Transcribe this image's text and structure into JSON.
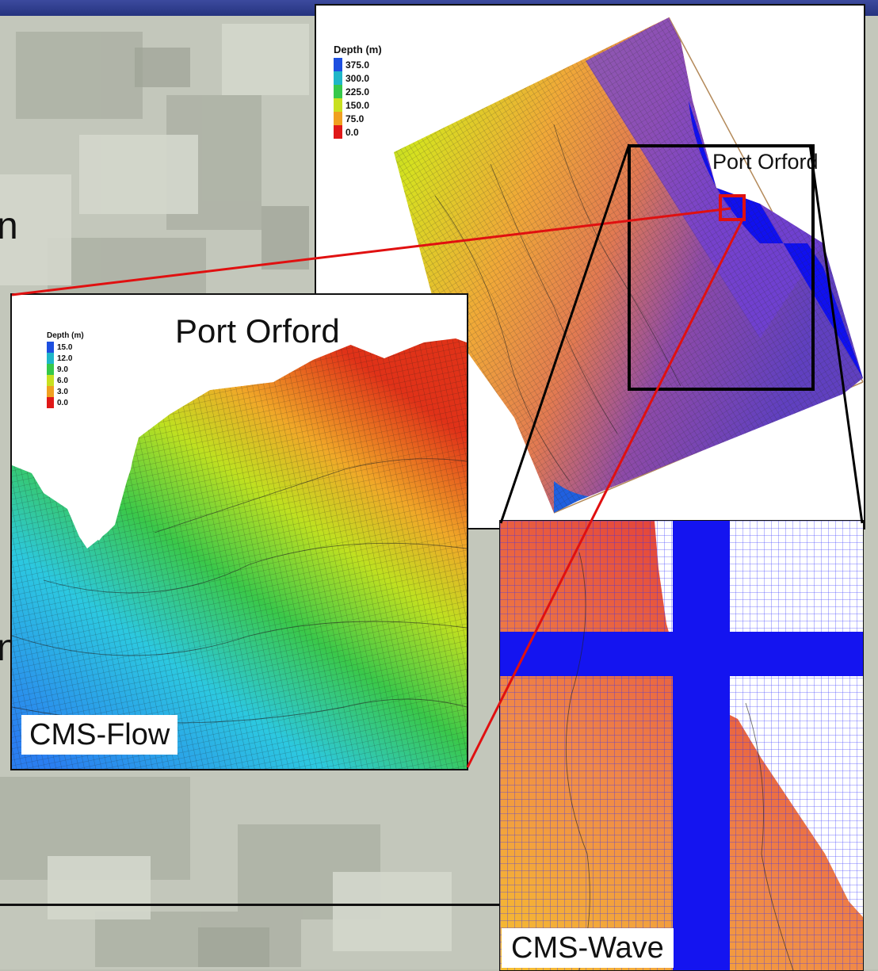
{
  "edge_glyphs": [
    "n",
    "n"
  ],
  "overview": {
    "legend_title": "Depth (m)",
    "legend_values": [
      "375.0",
      "300.0",
      "225.0",
      "150.0",
      "75.0",
      "0.0"
    ],
    "legend_colors": [
      "#1d4fe0",
      "#1fb6c8",
      "#36c84a",
      "#c8e020",
      "#f0a020",
      "#e01818"
    ],
    "location_label": "Port Orford"
  },
  "flow": {
    "title": "Port Orford",
    "legend_title": "Depth (m)",
    "legend_values": [
      "15.0",
      "12.0",
      "9.0",
      "6.0",
      "3.0",
      "0.0"
    ],
    "legend_colors": [
      "#1d4fe0",
      "#1fb6c8",
      "#36c84a",
      "#c8e020",
      "#f0a020",
      "#e01818"
    ],
    "caption": "CMS-Flow"
  },
  "wave": {
    "caption": "CMS-Wave"
  }
}
